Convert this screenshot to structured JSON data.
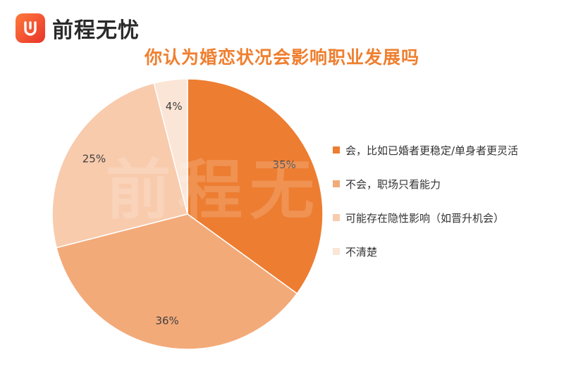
{
  "brand": {
    "name": "前程无忧",
    "logo_icon": "hand-logo-icon"
  },
  "chart_data": {
    "type": "pie",
    "title": "你认为婚恋状况会影响职业发展吗",
    "categories": [
      "会，比如已婚者更稳定/单身者更灵活",
      "不会，职场只看能力",
      "可能存在隐性影响（如晋升机会）",
      "不清楚"
    ],
    "values": [
      35,
      36,
      25,
      4
    ],
    "data_labels": [
      "35%",
      "36%",
      "25%",
      "4%"
    ],
    "colors": [
      "#ed7d31",
      "#f3aa79",
      "#f8cbad",
      "#fbe5d6"
    ],
    "start_angle": "12 o'clock",
    "direction": "clockwise",
    "legend_position": "right"
  },
  "watermark": "前程无忧"
}
